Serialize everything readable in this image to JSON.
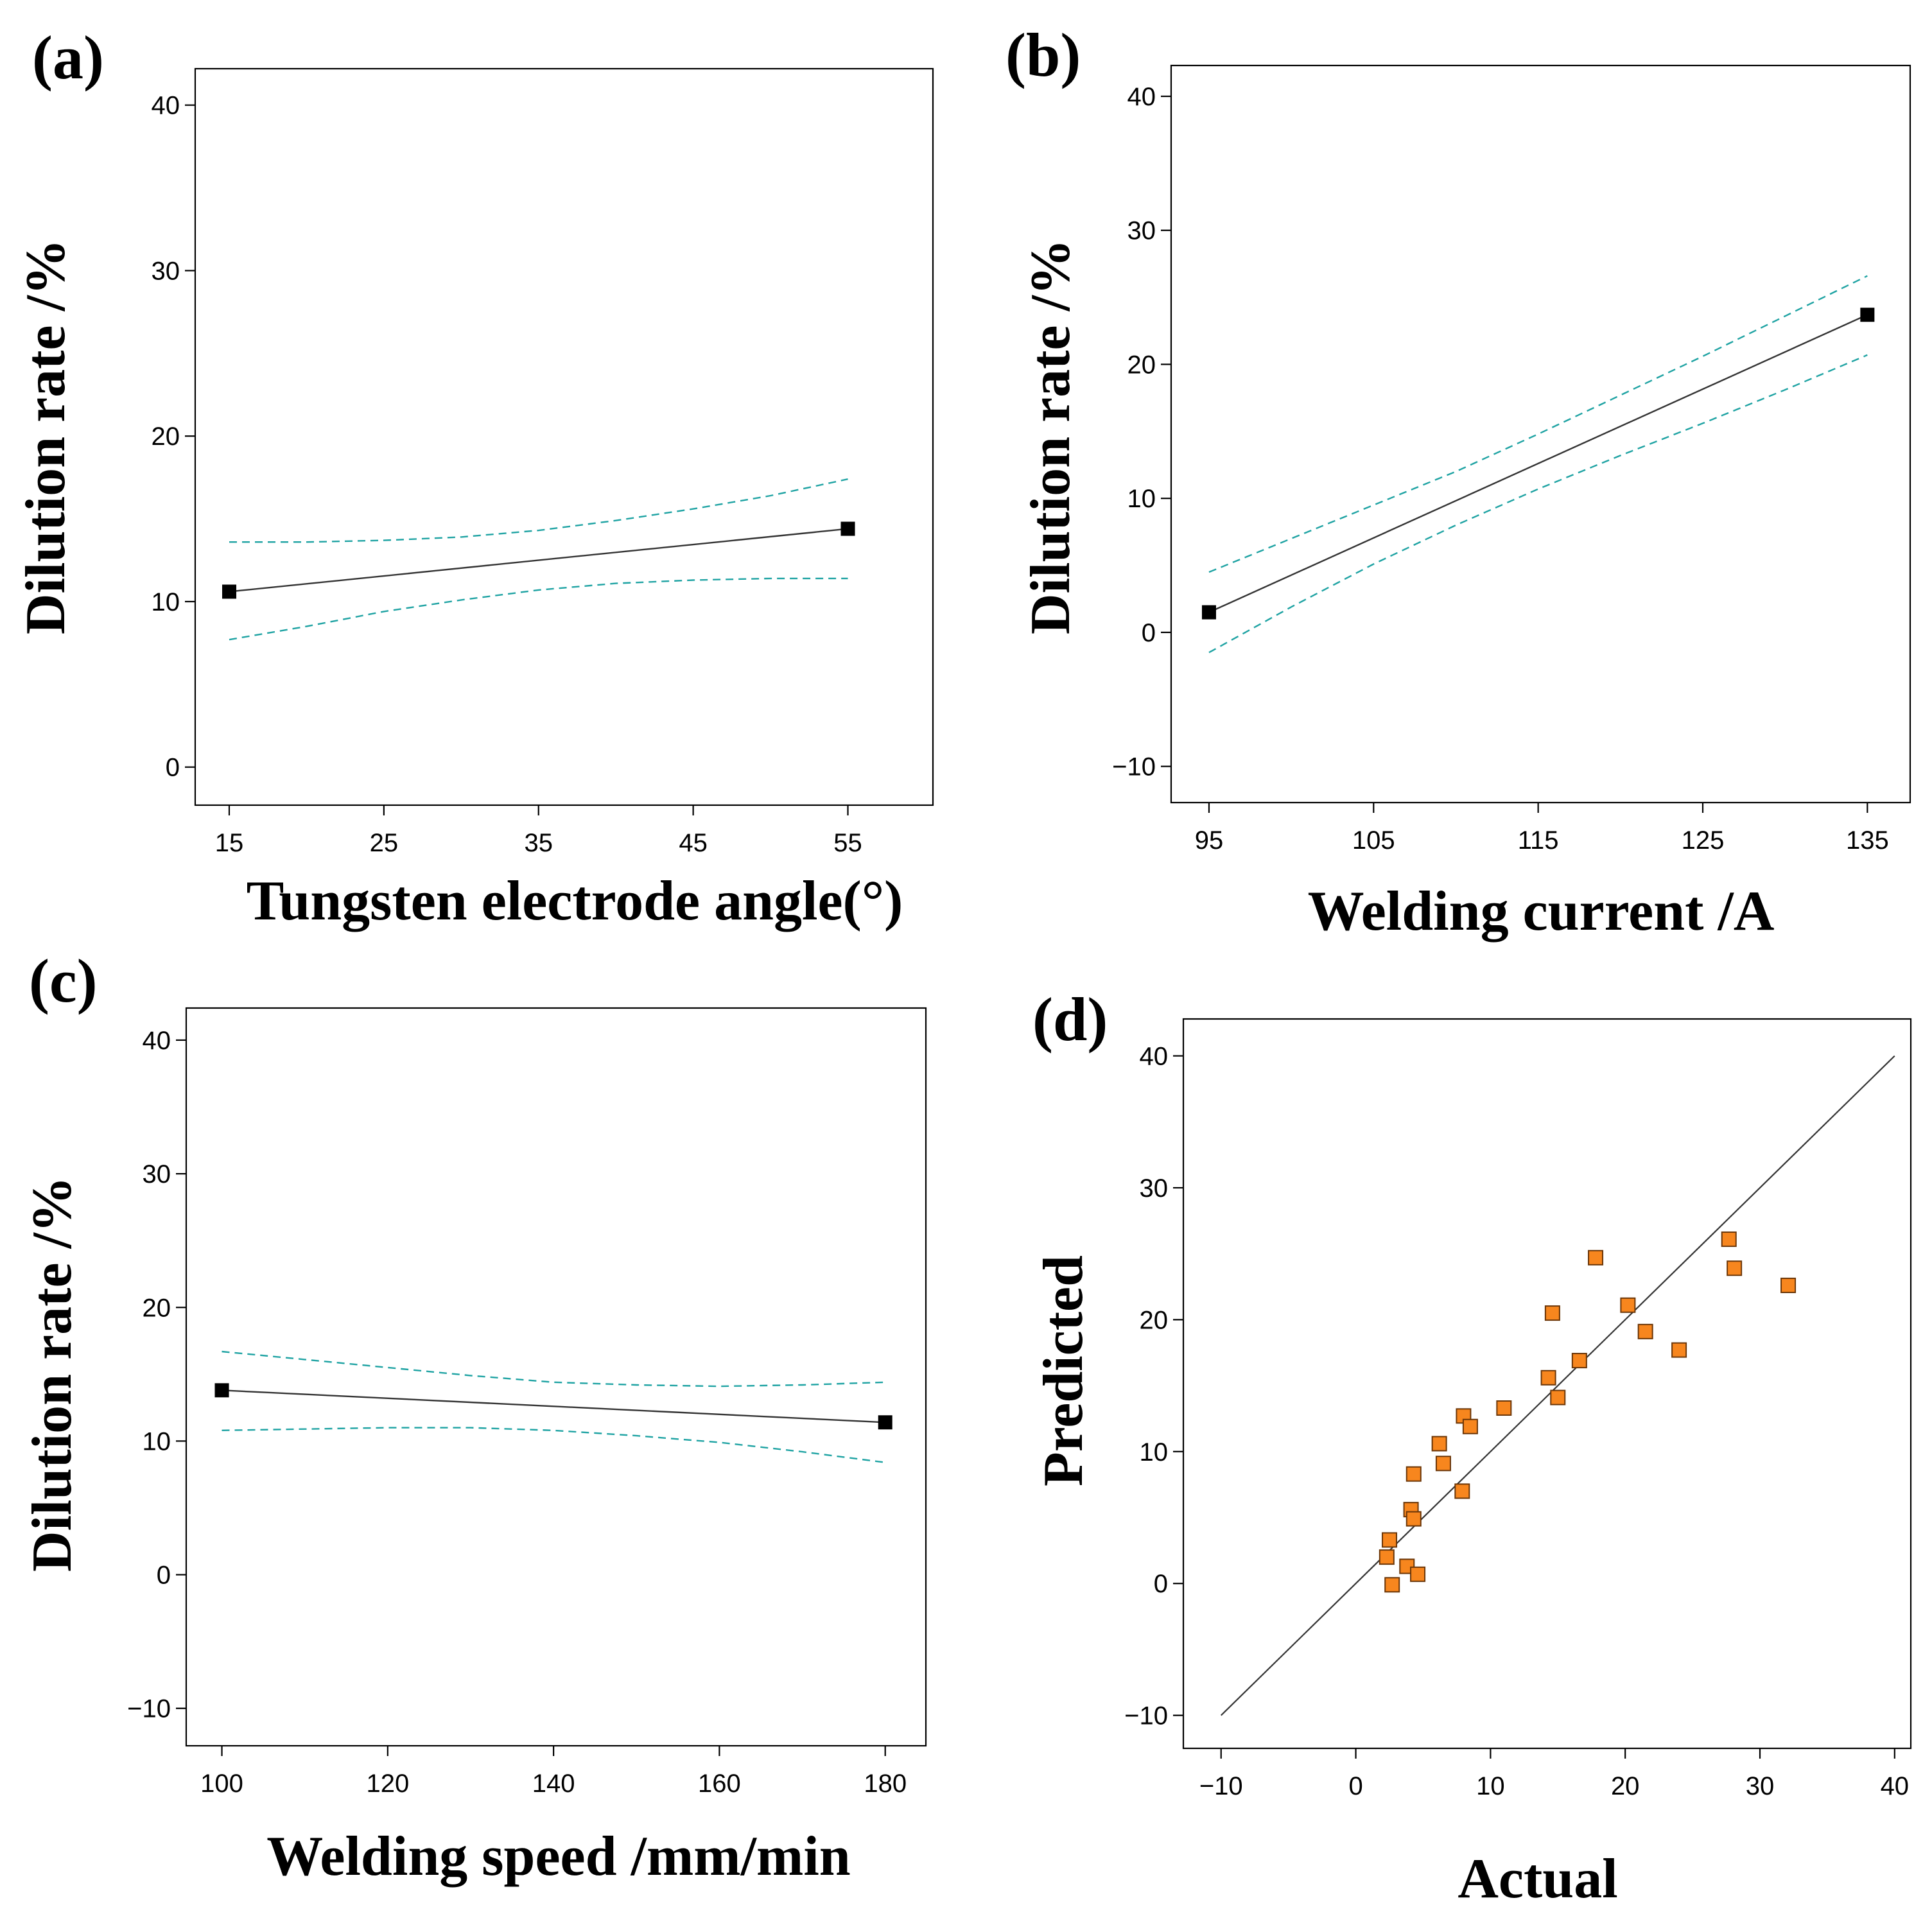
{
  "chart_data": [
    {
      "panel": "(a)",
      "type": "line",
      "xlabel": "Tungsten electrode angle(°)",
      "ylabel": "Dilution rate /%",
      "xlim": [
        12.8,
        60.5
      ],
      "ylim": [
        -2.3,
        42.2
      ],
      "xticks": [
        15,
        25,
        35,
        45,
        55
      ],
      "yticks": [
        0,
        10,
        20,
        30,
        40
      ],
      "grid": false,
      "series": [
        {
          "name": "fit",
          "x": [
            15,
            55
          ],
          "y": [
            10.6,
            14.4
          ],
          "markers": true
        },
        {
          "name": "upper-ci",
          "x": [
            15,
            20,
            25,
            30,
            35,
            40,
            45,
            50,
            55
          ],
          "y": [
            13.6,
            13.6,
            13.7,
            13.9,
            14.3,
            14.9,
            15.6,
            16.4,
            17.4
          ]
        },
        {
          "name": "lower-ci",
          "x": [
            15,
            20,
            25,
            30,
            35,
            40,
            45,
            50,
            55
          ],
          "y": [
            7.7,
            8.5,
            9.4,
            10.1,
            10.7,
            11.1,
            11.3,
            11.4,
            11.4
          ]
        }
      ],
      "colors": {
        "fit": "#333333",
        "ci": "#1fa3a3",
        "marker": "#000000"
      }
    },
    {
      "panel": "(b)",
      "type": "line",
      "xlabel": "Welding current /A",
      "ylabel": "Dilution rate /%",
      "xlim": [
        92.7,
        137.6
      ],
      "ylim": [
        -12.7,
        42.3
      ],
      "xticks": [
        95,
        105,
        115,
        125,
        135
      ],
      "yticks": [
        -10,
        0,
        10,
        20,
        30,
        40
      ],
      "grid": false,
      "series": [
        {
          "name": "fit",
          "x": [
            95,
            135
          ],
          "y": [
            1.5,
            23.7
          ],
          "markers": true
        },
        {
          "name": "upper-ci",
          "x": [
            95,
            100,
            105,
            110,
            115,
            120,
            125,
            130,
            135
          ],
          "y": [
            4.5,
            7.0,
            9.5,
            12.0,
            14.8,
            17.7,
            20.6,
            23.6,
            26.6
          ]
        },
        {
          "name": "lower-ci",
          "x": [
            95,
            100,
            105,
            110,
            115,
            120,
            125,
            130,
            135
          ],
          "y": [
            -1.5,
            1.9,
            5.1,
            8.0,
            10.7,
            13.2,
            15.6,
            18.1,
            20.7
          ]
        }
      ],
      "colors": {
        "fit": "#333333",
        "ci": "#1fa3a3",
        "marker": "#000000"
      }
    },
    {
      "panel": "(c)",
      "type": "line",
      "xlabel": "Welding speed /mm/min",
      "ylabel": "Dilution rate /%",
      "xlim": [
        95.7,
        184.9
      ],
      "ylim": [
        -12.8,
        42.4
      ],
      "xticks": [
        100,
        120,
        140,
        160,
        180
      ],
      "yticks": [
        -10,
        0,
        10,
        20,
        30,
        40
      ],
      "grid": false,
      "series": [
        {
          "name": "fit",
          "x": [
            100,
            180
          ],
          "y": [
            13.8,
            11.4
          ],
          "markers": true
        },
        {
          "name": "upper-ci",
          "x": [
            100,
            110,
            120,
            130,
            140,
            150,
            160,
            170,
            180
          ],
          "y": [
            16.7,
            16.1,
            15.5,
            14.9,
            14.4,
            14.2,
            14.1,
            14.2,
            14.4
          ]
        },
        {
          "name": "lower-ci",
          "x": [
            100,
            110,
            120,
            130,
            140,
            150,
            160,
            170,
            180
          ],
          "y": [
            10.8,
            10.9,
            11.0,
            11.0,
            10.8,
            10.4,
            9.9,
            9.2,
            8.4
          ]
        }
      ],
      "colors": {
        "fit": "#333333",
        "ci": "#1fa3a3",
        "marker": "#000000"
      }
    },
    {
      "panel": "(d)",
      "type": "scatter",
      "xlabel": "Actual",
      "ylabel": "Predicted",
      "xlim": [
        -12.8,
        41.2
      ],
      "ylim": [
        -12.5,
        42.8
      ],
      "xticks": [
        -10,
        0,
        10,
        20,
        30,
        40
      ],
      "yticks": [
        -10,
        0,
        10,
        20,
        30,
        40
      ],
      "grid": false,
      "reference_line": {
        "x": [
          -10,
          40
        ],
        "y": [
          -10,
          40
        ]
      },
      "points": [
        {
          "x": 2.3,
          "y": 2.0
        },
        {
          "x": 2.5,
          "y": 3.3
        },
        {
          "x": 2.7,
          "y": -0.1
        },
        {
          "x": 3.8,
          "y": 1.3
        },
        {
          "x": 4.1,
          "y": 5.6
        },
        {
          "x": 4.3,
          "y": 8.3
        },
        {
          "x": 4.3,
          "y": 4.9
        },
        {
          "x": 4.6,
          "y": 0.7
        },
        {
          "x": 6.2,
          "y": 10.6
        },
        {
          "x": 6.5,
          "y": 9.1
        },
        {
          "x": 7.9,
          "y": 7.0
        },
        {
          "x": 8.0,
          "y": 12.7
        },
        {
          "x": 8.5,
          "y": 11.9
        },
        {
          "x": 11.0,
          "y": 13.3
        },
        {
          "x": 14.3,
          "y": 15.6
        },
        {
          "x": 14.6,
          "y": 20.5
        },
        {
          "x": 15.0,
          "y": 14.1
        },
        {
          "x": 16.6,
          "y": 16.9
        },
        {
          "x": 17.8,
          "y": 24.7
        },
        {
          "x": 20.2,
          "y": 21.1
        },
        {
          "x": 21.5,
          "y": 19.1
        },
        {
          "x": 24.0,
          "y": 17.7
        },
        {
          "x": 27.7,
          "y": 26.1
        },
        {
          "x": 28.1,
          "y": 23.9
        },
        {
          "x": 32.1,
          "y": 22.6
        }
      ],
      "colors": {
        "marker_fill": "#f7861e",
        "marker_edge": "#6b3608",
        "line": "#333333"
      }
    }
  ]
}
